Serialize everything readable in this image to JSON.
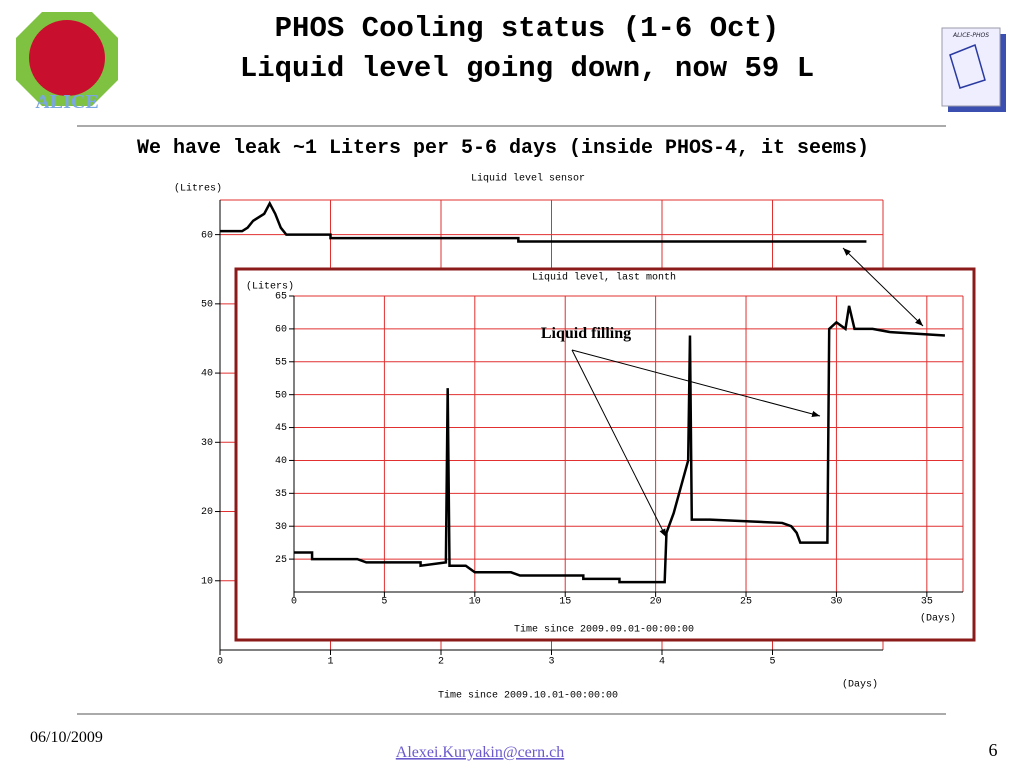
{
  "header": {
    "title_lines": [
      "PHOS Cooling status (1-6 Oct)",
      "Liquid level going down, now 59 L"
    ],
    "subtitle": "We have leak ~1 Liters per 5-6 days (inside PHOS-4, it seems)"
  },
  "logos": {
    "left": "ALICE",
    "right": "ALICE-PHOS"
  },
  "chart_data": [
    {
      "type": "line",
      "title": "Liquid level sensor",
      "ylabel": "(Litres)",
      "xlabel": "Time since 2009.10.01-00:00:00",
      "xunit": "(Days)",
      "x": [
        0,
        0.2,
        0.25,
        0.3,
        0.4,
        0.45,
        0.5,
        0.55,
        0.6,
        1.0,
        1.0,
        2.7,
        2.7,
        5.85
      ],
      "values": [
        60.5,
        60.5,
        61,
        62,
        63,
        64.5,
        63,
        61,
        60,
        60,
        59.5,
        59.5,
        59,
        59
      ],
      "color": "#000000",
      "xlim": [
        0,
        6
      ],
      "ylim": [
        0,
        65
      ],
      "xticks": [
        0,
        1,
        2,
        3,
        4,
        5
      ],
      "yticks": [
        10,
        20,
        30,
        40,
        50,
        60
      ],
      "grid": true,
      "grid_color": "#e03030"
    },
    {
      "type": "line",
      "title": "Liquid level, last month",
      "ylabel": "(Liters)",
      "xlabel": "Time since 2009.09.01-00:00:00",
      "xunit": "(Days)",
      "annotations": [
        "Liquid filling"
      ],
      "x": [
        0,
        1,
        1,
        3.5,
        4,
        7,
        7,
        8.4,
        8.5,
        8.6,
        9.5,
        10,
        12,
        12.5,
        16,
        16,
        18,
        18,
        20.5,
        20.6,
        21,
        21.5,
        21.8,
        21.9,
        22,
        23,
        27,
        27.5,
        27.8,
        28,
        29.5,
        29.6,
        30,
        30.5,
        30.7,
        31,
        32,
        33,
        36
      ],
      "values": [
        26,
        26,
        25,
        25,
        24.5,
        24.5,
        24,
        24.5,
        51,
        24,
        24,
        23,
        23,
        22.5,
        22.5,
        22,
        22,
        21.5,
        21.5,
        29,
        32,
        37,
        40,
        59,
        31,
        31,
        30.5,
        30,
        29,
        27.5,
        27.5,
        60,
        61,
        60,
        63.5,
        60,
        60,
        59.5,
        59
      ],
      "color": "#000000",
      "xlim": [
        0,
        37
      ],
      "ylim": [
        20,
        65
      ],
      "xticks": [
        0,
        5,
        10,
        15,
        20,
        25,
        30,
        35
      ],
      "yticks": [
        25,
        30,
        35,
        40,
        45,
        50,
        55,
        60,
        65
      ],
      "grid": true,
      "grid_color": "#e03030"
    }
  ],
  "footer": {
    "date": "06/10/2009",
    "email": "Alexei.Kuryakin@cern.ch",
    "page": "6"
  }
}
